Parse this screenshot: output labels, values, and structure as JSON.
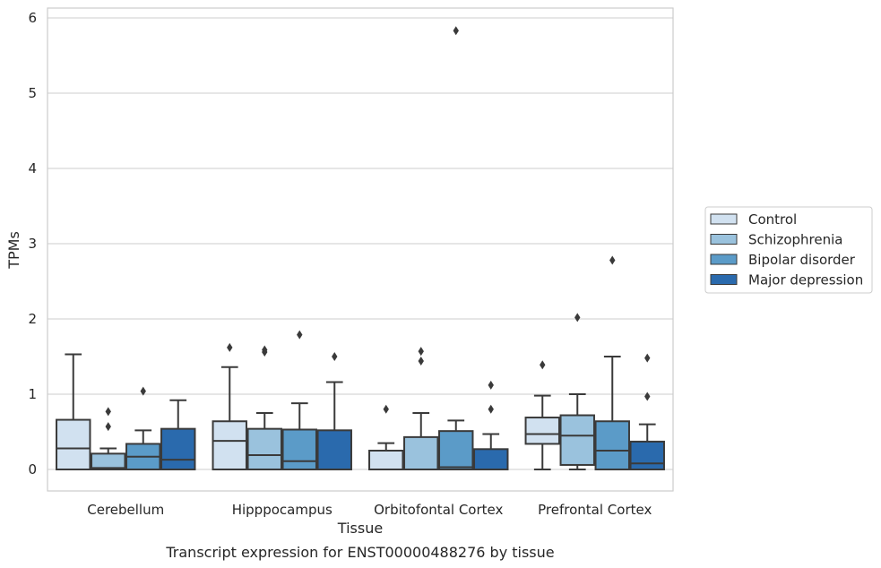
{
  "chart_data": {
    "type": "box",
    "xlabel": "Tissue",
    "ylabel": "TPMs",
    "caption": "Transcript expression for ENST00000488276 by tissue",
    "ylim": [
      -0.28,
      6.15
    ],
    "yticks": [
      0,
      1,
      2,
      3,
      4,
      5,
      6
    ],
    "grid": true,
    "legend_position": "right",
    "categories": [
      "Cerebellum",
      "Hipppocampus",
      "Orbitofontal Cortex",
      "Prefrontal Cortex"
    ],
    "series": [
      {
        "name": "Control",
        "color": "#d1e1f0",
        "boxes": [
          {
            "whisker_low": 0,
            "q1": 0,
            "median": 0.28,
            "q3": 0.66,
            "whisker_high": 1.53,
            "outliers": []
          },
          {
            "whisker_low": 0,
            "q1": 0,
            "median": 0.38,
            "q3": 0.64,
            "whisker_high": 1.36,
            "outliers": [
              1.62
            ]
          },
          {
            "whisker_low": 0,
            "q1": 0,
            "median": 0,
            "q3": 0.25,
            "whisker_high": 0.35,
            "outliers": [
              0.8
            ]
          },
          {
            "whisker_low": 0,
            "q1": 0.34,
            "median": 0.47,
            "q3": 0.69,
            "whisker_high": 0.98,
            "outliers": [
              1.39
            ]
          }
        ]
      },
      {
        "name": "Schizophrenia",
        "color": "#9ac2dd",
        "boxes": [
          {
            "whisker_low": 0,
            "q1": 0,
            "median": 0.02,
            "q3": 0.21,
            "whisker_high": 0.28,
            "outliers": [
              0.57,
              0.77
            ]
          },
          {
            "whisker_low": 0,
            "q1": 0,
            "median": 0.19,
            "q3": 0.54,
            "whisker_high": 0.75,
            "outliers": [
              1.56,
              1.59
            ]
          },
          {
            "whisker_low": 0,
            "q1": 0,
            "median": 0,
            "q3": 0.43,
            "whisker_high": 0.75,
            "outliers": [
              1.44,
              1.57
            ]
          },
          {
            "whisker_low": 0,
            "q1": 0.06,
            "median": 0.45,
            "q3": 0.72,
            "whisker_high": 1.0,
            "outliers": [
              2.02
            ]
          }
        ]
      },
      {
        "name": "Bipolar disorder",
        "color": "#5b9bc8",
        "boxes": [
          {
            "whisker_low": 0,
            "q1": 0,
            "median": 0.17,
            "q3": 0.34,
            "whisker_high": 0.52,
            "outliers": [
              1.04
            ]
          },
          {
            "whisker_low": 0,
            "q1": 0,
            "median": 0.11,
            "q3": 0.53,
            "whisker_high": 0.88,
            "outliers": [
              1.79
            ]
          },
          {
            "whisker_low": 0,
            "q1": 0,
            "median": 0.03,
            "q3": 0.51,
            "whisker_high": 0.65,
            "outliers": [
              5.83
            ]
          },
          {
            "whisker_low": 0,
            "q1": 0,
            "median": 0.25,
            "q3": 0.64,
            "whisker_high": 1.5,
            "outliers": [
              2.78
            ]
          }
        ]
      },
      {
        "name": "Major depression",
        "color": "#2a6aad",
        "boxes": [
          {
            "whisker_low": 0,
            "q1": 0,
            "median": 0.13,
            "q3": 0.54,
            "whisker_high": 0.92,
            "outliers": []
          },
          {
            "whisker_low": 0,
            "q1": 0,
            "median": 0.0,
            "q3": 0.52,
            "whisker_high": 1.16,
            "outliers": [
              1.5
            ]
          },
          {
            "whisker_low": 0,
            "q1": 0,
            "median": 0.0,
            "q3": 0.27,
            "whisker_high": 0.47,
            "outliers": [
              0.8,
              1.12
            ]
          },
          {
            "whisker_low": 0,
            "q1": 0,
            "median": 0.08,
            "q3": 0.37,
            "whisker_high": 0.6,
            "outliers": [
              0.97,
              1.48
            ]
          }
        ]
      }
    ]
  }
}
